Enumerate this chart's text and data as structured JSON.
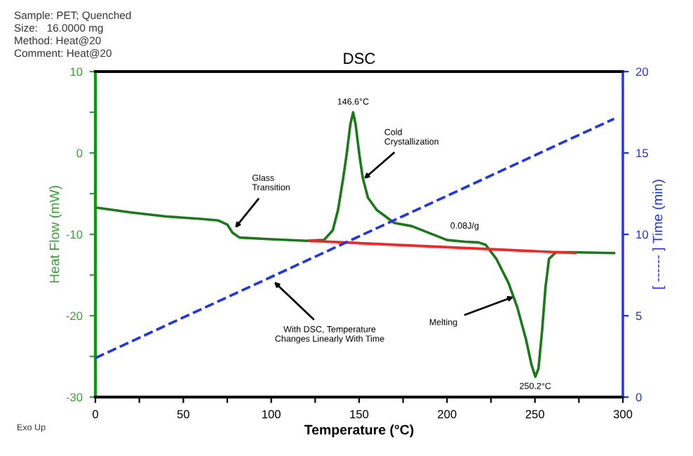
{
  "chart_data": {
    "type": "line",
    "title": "DSC",
    "xlabel": "Temperature (°C)",
    "ylabel": "Heat Flow (mW)",
    "y2label": "[ ------ ] Time (min)",
    "xlim": [
      0,
      300
    ],
    "xticks": [
      0,
      {
        "value": 25,
        "label": null
      },
      50,
      {
        "value": 75,
        "label": null
      },
      100,
      {
        "value": 125,
        "label": null
      },
      150,
      {
        "value": 175,
        "label": null
      },
      200,
      {
        "value": 225,
        "label": null
      },
      250,
      {
        "value": 275,
        "label": null
      },
      300
    ],
    "ylim": [
      -30,
      10
    ],
    "yticks": [
      -30,
      {
        "value": -25,
        "label": null
      },
      -20,
      {
        "value": -15,
        "label": null
      },
      -10,
      {
        "value": -5,
        "label": null
      },
      0,
      {
        "value": 5,
        "label": null
      },
      10
    ],
    "y2lim": [
      0,
      20
    ],
    "y2ticks": [
      0,
      5,
      10,
      15,
      20
    ],
    "series": [
      {
        "color": "#1a7a1a",
        "line_style": "solid",
        "x": [
          0,
          20,
          40,
          60,
          70,
          75,
          78,
          82,
          100,
          120,
          130,
          135,
          138,
          141,
          143,
          145,
          146.6,
          148,
          150,
          152,
          155,
          160,
          170,
          180,
          200,
          210,
          218,
          222,
          228,
          235,
          240,
          245,
          248,
          250.2,
          252,
          254,
          256,
          258,
          262,
          270,
          295
        ],
        "values": [
          -6.7,
          -7.3,
          -7.8,
          -8.1,
          -8.3,
          -8.8,
          -9.8,
          -10.4,
          -10.6,
          -10.8,
          -10.7,
          -9.5,
          -7,
          -3,
          0,
          3.5,
          5.0,
          3.5,
          0,
          -3,
          -5.5,
          -7,
          -8.6,
          -9.0,
          -10.7,
          -10.9,
          -11.0,
          -11.3,
          -13,
          -16,
          -19,
          -23,
          -26,
          -27.5,
          -26.5,
          -22,
          -16.5,
          -13,
          -12.2,
          -12.2,
          -12.3
        ]
      },
      {
        "color": "#ff2020",
        "line_style": "solid",
        "x": [
          122,
          273
        ],
        "values": [
          -10.8,
          -12.3
        ]
      },
      {
        "color": "#2030ff",
        "line_style": "dashed",
        "axis": "y2",
        "x": [
          0,
          295
        ],
        "values": [
          2.4,
          17.1
        ]
      }
    ],
    "annotations": [
      "Sample: PET; Quenched",
      "Size:   16.0000 mg",
      "Method: Heat@20",
      "Comment: Heat@20",
      "Exo Up",
      {
        "text": "146.6°C",
        "x": 146.6,
        "y": 5.0
      },
      {
        "text": "250.2°C",
        "x": 250.2,
        "y": -27.5
      },
      {
        "text": "Glass\nTransition",
        "x": 78,
        "y": -9.6
      },
      {
        "text": "Cold\nCrystallization",
        "x": 151,
        "y": -3.5
      },
      {
        "text": "Melting",
        "x": 240,
        "y": -17.5
      },
      {
        "text": "With DSC, Temperature\nChanges Linearly With Time",
        "x": 100,
        "y": -15.5
      },
      {
        "text": "0.08J/g",
        "x": 210,
        "y": -10.0
      }
    ],
    "grid": false,
    "marker": "none"
  }
}
